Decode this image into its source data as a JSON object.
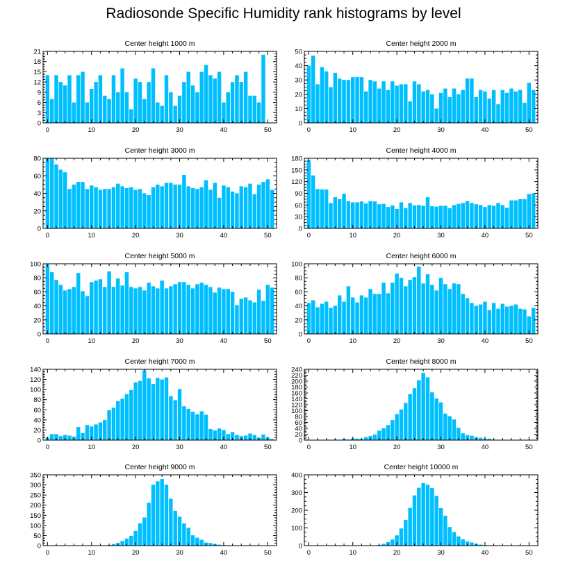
{
  "title": "Radiosonde Specific Humidity rank histograms by level",
  "colors": {
    "bar": "#00bfff",
    "bar_stroke": "#ffffff",
    "axis": "#000000",
    "background": "#ffffff"
  },
  "chart_data": [
    {
      "type": "bar",
      "title": "Center height 1000 m",
      "xlabel": "",
      "ylabel": "",
      "xlim": [
        -1,
        52
      ],
      "ylim": [
        0,
        21
      ],
      "xticks": [
        0,
        10,
        20,
        30,
        40,
        50
      ],
      "yticks": [
        0,
        3,
        6,
        9,
        12,
        15,
        18,
        21
      ],
      "x": [
        0,
        1,
        2,
        3,
        4,
        5,
        6,
        7,
        8,
        9,
        10,
        11,
        12,
        13,
        14,
        15,
        16,
        17,
        18,
        19,
        20,
        21,
        22,
        23,
        24,
        25,
        26,
        27,
        28,
        29,
        30,
        31,
        32,
        33,
        34,
        35,
        36,
        37,
        38,
        39,
        40,
        41,
        42,
        43,
        44,
        45,
        46,
        47,
        48,
        49,
        50,
        51
      ],
      "values": [
        14,
        7,
        14,
        12,
        11,
        14,
        6,
        14,
        15,
        6,
        10,
        12,
        14,
        8,
        7,
        14,
        9,
        16,
        9,
        4,
        13,
        12,
        7,
        12,
        16,
        6,
        5,
        14,
        9,
        5,
        8,
        12,
        15,
        11,
        9,
        15,
        17,
        14,
        13,
        15,
        6,
        9,
        12,
        14,
        12,
        15,
        8,
        8,
        6,
        20,
        0,
        0
      ]
    },
    {
      "type": "bar",
      "title": "Center height 2000 m",
      "xlabel": "",
      "ylabel": "",
      "xlim": [
        -1,
        52
      ],
      "ylim": [
        0,
        50
      ],
      "xticks": [
        0,
        10,
        20,
        30,
        40,
        50
      ],
      "yticks": [
        0,
        10,
        20,
        30,
        40,
        50
      ],
      "x": [
        0,
        1,
        2,
        3,
        4,
        5,
        6,
        7,
        8,
        9,
        10,
        11,
        12,
        13,
        14,
        15,
        16,
        17,
        18,
        19,
        20,
        21,
        22,
        23,
        24,
        25,
        26,
        27,
        28,
        29,
        30,
        31,
        32,
        33,
        34,
        35,
        36,
        37,
        38,
        39,
        40,
        41,
        42,
        43,
        44,
        45,
        46,
        47,
        48,
        49,
        50,
        51
      ],
      "values": [
        40,
        47,
        27,
        39,
        36,
        25,
        35,
        31,
        30,
        30,
        32,
        32,
        32,
        22,
        30,
        29,
        24,
        29,
        23,
        29,
        26,
        27,
        27,
        15,
        29,
        27,
        22,
        23,
        20,
        10,
        21,
        24,
        18,
        24,
        20,
        23,
        31,
        31,
        18,
        23,
        22,
        17,
        23,
        13,
        23,
        21,
        24,
        22,
        23,
        14,
        28,
        23
      ]
    },
    {
      "type": "bar",
      "title": "Center height 3000 m",
      "xlabel": "",
      "ylabel": "",
      "xlim": [
        -1,
        52
      ],
      "ylim": [
        0,
        80
      ],
      "xticks": [
        0,
        10,
        20,
        30,
        40,
        50
      ],
      "yticks": [
        0,
        20,
        40,
        60,
        80
      ],
      "x": [
        0,
        1,
        2,
        3,
        4,
        5,
        6,
        7,
        8,
        9,
        10,
        11,
        12,
        13,
        14,
        15,
        16,
        17,
        18,
        19,
        20,
        21,
        22,
        23,
        24,
        25,
        26,
        27,
        28,
        29,
        30,
        31,
        32,
        33,
        34,
        35,
        36,
        37,
        38,
        39,
        40,
        41,
        42,
        43,
        44,
        45,
        46,
        47,
        48,
        49,
        50,
        51
      ],
      "values": [
        80,
        80,
        73,
        67,
        64,
        45,
        50,
        53,
        53,
        45,
        49,
        47,
        44,
        45,
        45,
        47,
        51,
        48,
        46,
        47,
        44,
        45,
        40,
        38,
        47,
        50,
        48,
        52,
        52,
        50,
        50,
        61,
        48,
        46,
        45,
        47,
        55,
        44,
        52,
        35,
        49,
        47,
        42,
        40,
        48,
        47,
        51,
        39,
        50,
        53,
        56,
        44
      ]
    },
    {
      "type": "bar",
      "title": "Center height 4000 m",
      "xlabel": "",
      "ylabel": "",
      "xlim": [
        -1,
        52
      ],
      "ylim": [
        0,
        180
      ],
      "xticks": [
        0,
        10,
        20,
        30,
        40,
        50
      ],
      "yticks": [
        0,
        30,
        60,
        90,
        120,
        150,
        180
      ],
      "x": [
        0,
        1,
        2,
        3,
        4,
        5,
        6,
        7,
        8,
        9,
        10,
        11,
        12,
        13,
        14,
        15,
        16,
        17,
        18,
        19,
        20,
        21,
        22,
        23,
        24,
        25,
        26,
        27,
        28,
        29,
        30,
        31,
        32,
        33,
        34,
        35,
        36,
        37,
        38,
        39,
        40,
        41,
        42,
        43,
        44,
        45,
        46,
        47,
        48,
        49,
        50,
        51
      ],
      "values": [
        176,
        136,
        101,
        100,
        100,
        65,
        80,
        75,
        89,
        70,
        67,
        67,
        69,
        64,
        70,
        69,
        62,
        63,
        55,
        59,
        50,
        67,
        52,
        65,
        59,
        60,
        58,
        80,
        57,
        56,
        58,
        58,
        52,
        60,
        63,
        65,
        70,
        65,
        62,
        60,
        55,
        60,
        58,
        65,
        60,
        53,
        72,
        72,
        75,
        75,
        88,
        90
      ]
    },
    {
      "type": "bar",
      "title": "Center height 5000 m",
      "xlabel": "",
      "ylabel": "",
      "xlim": [
        -1,
        52
      ],
      "ylim": [
        0,
        100
      ],
      "xticks": [
        0,
        10,
        20,
        30,
        40,
        50
      ],
      "yticks": [
        0,
        20,
        40,
        60,
        80,
        100
      ],
      "x": [
        0,
        1,
        2,
        3,
        4,
        5,
        6,
        7,
        8,
        9,
        10,
        11,
        12,
        13,
        14,
        15,
        16,
        17,
        18,
        19,
        20,
        21,
        22,
        23,
        24,
        25,
        26,
        27,
        28,
        29,
        30,
        31,
        32,
        33,
        34,
        35,
        36,
        37,
        38,
        39,
        40,
        41,
        42,
        43,
        44,
        45,
        46,
        47,
        48,
        49,
        50,
        51
      ],
      "values": [
        99,
        88,
        77,
        70,
        62,
        64,
        67,
        87,
        61,
        54,
        74,
        76,
        78,
        67,
        89,
        67,
        79,
        69,
        88,
        67,
        65,
        67,
        62,
        73,
        68,
        65,
        76,
        65,
        68,
        71,
        74,
        74,
        70,
        65,
        71,
        73,
        70,
        67,
        59,
        66,
        64,
        64,
        60,
        41,
        50,
        52,
        48,
        45,
        63,
        47,
        70,
        66
      ]
    },
    {
      "type": "bar",
      "title": "Center height 6000 m",
      "xlabel": "",
      "ylabel": "",
      "xlim": [
        -1,
        52
      ],
      "ylim": [
        0,
        100
      ],
      "xticks": [
        0,
        10,
        20,
        30,
        40,
        50
      ],
      "yticks": [
        0,
        20,
        40,
        60,
        80,
        100
      ],
      "x": [
        0,
        1,
        2,
        3,
        4,
        5,
        6,
        7,
        8,
        9,
        10,
        11,
        12,
        13,
        14,
        15,
        16,
        17,
        18,
        19,
        20,
        21,
        22,
        23,
        24,
        25,
        26,
        27,
        28,
        29,
        30,
        31,
        32,
        33,
        34,
        35,
        36,
        37,
        38,
        39,
        40,
        41,
        42,
        43,
        44,
        45,
        46,
        47,
        48,
        49,
        50,
        51
      ],
      "values": [
        44,
        48,
        38,
        43,
        46,
        37,
        40,
        55,
        46,
        68,
        52,
        45,
        55,
        52,
        64,
        57,
        57,
        73,
        58,
        73,
        86,
        80,
        68,
        77,
        81,
        96,
        72,
        85,
        70,
        62,
        80,
        71,
        64,
        72,
        71,
        57,
        51,
        44,
        40,
        42,
        46,
        34,
        44,
        36,
        43,
        39,
        40,
        42,
        36,
        35,
        25,
        37
      ]
    },
    {
      "type": "bar",
      "title": "Center height 7000 m",
      "xlabel": "",
      "ylabel": "",
      "xlim": [
        -1,
        52
      ],
      "ylim": [
        0,
        140
      ],
      "xticks": [
        0,
        10,
        20,
        30,
        40,
        50
      ],
      "yticks": [
        0,
        20,
        40,
        60,
        80,
        100,
        120,
        140
      ],
      "x": [
        0,
        1,
        2,
        3,
        4,
        5,
        6,
        7,
        8,
        9,
        10,
        11,
        12,
        13,
        14,
        15,
        16,
        17,
        18,
        19,
        20,
        21,
        22,
        23,
        24,
        25,
        26,
        27,
        28,
        29,
        30,
        31,
        32,
        33,
        34,
        35,
        36,
        37,
        38,
        39,
        40,
        41,
        42,
        43,
        44,
        45,
        46,
        47,
        48,
        49,
        50,
        51
      ],
      "values": [
        5,
        12,
        12,
        8,
        10,
        9,
        7,
        26,
        14,
        30,
        27,
        31,
        35,
        40,
        59,
        64,
        77,
        82,
        91,
        99,
        114,
        117,
        138,
        122,
        111,
        123,
        120,
        124,
        87,
        79,
        101,
        67,
        62,
        56,
        51,
        57,
        50,
        22,
        19,
        23,
        20,
        12,
        16,
        10,
        8,
        9,
        13,
        10,
        5,
        11,
        5,
        2
      ]
    },
    {
      "type": "bar",
      "title": "Center height 8000 m",
      "xlabel": "",
      "ylabel": "",
      "xlim": [
        -1,
        52
      ],
      "ylim": [
        0,
        240
      ],
      "xticks": [
        0,
        10,
        20,
        30,
        40,
        50
      ],
      "yticks": [
        0,
        20,
        40,
        60,
        80,
        100,
        120,
        140,
        160,
        180,
        200,
        220,
        240
      ],
      "x": [
        0,
        1,
        2,
        3,
        4,
        5,
        6,
        7,
        8,
        9,
        10,
        11,
        12,
        13,
        14,
        15,
        16,
        17,
        18,
        19,
        20,
        21,
        22,
        23,
        24,
        25,
        26,
        27,
        28,
        29,
        30,
        31,
        32,
        33,
        34,
        35,
        36,
        37,
        38,
        39,
        40,
        41,
        42,
        43,
        44,
        45,
        46,
        47,
        48,
        49,
        50,
        51
      ],
      "values": [
        0,
        0,
        0,
        0,
        0,
        0,
        2,
        1,
        4,
        2,
        6,
        5,
        4,
        10,
        14,
        19,
        32,
        40,
        51,
        68,
        88,
        104,
        126,
        156,
        176,
        203,
        228,
        213,
        162,
        141,
        128,
        90,
        81,
        70,
        42,
        23,
        17,
        15,
        10,
        8,
        5,
        5,
        2,
        1,
        1,
        0,
        0,
        0,
        0,
        0,
        0,
        0
      ]
    },
    {
      "type": "bar",
      "title": "Center height 9000 m",
      "xlabel": "",
      "ylabel": "",
      "xlim": [
        -1,
        52
      ],
      "ylim": [
        0,
        350
      ],
      "xticks": [
        0,
        10,
        20,
        30,
        40,
        50
      ],
      "yticks": [
        0,
        50,
        100,
        150,
        200,
        250,
        300,
        350
      ],
      "x": [
        0,
        1,
        2,
        3,
        4,
        5,
        6,
        7,
        8,
        9,
        10,
        11,
        12,
        13,
        14,
        15,
        16,
        17,
        18,
        19,
        20,
        21,
        22,
        23,
        24,
        25,
        26,
        27,
        28,
        29,
        30,
        31,
        32,
        33,
        34,
        35,
        36,
        37,
        38,
        39,
        40,
        41,
        42,
        43,
        44,
        45,
        46,
        47,
        48,
        49,
        50,
        51
      ],
      "values": [
        0,
        0,
        0,
        0,
        0,
        0,
        0,
        0,
        0,
        0,
        0,
        0,
        0,
        1,
        3,
        8,
        13,
        23,
        35,
        48,
        73,
        110,
        139,
        212,
        301,
        318,
        329,
        301,
        232,
        172,
        143,
        110,
        88,
        51,
        39,
        29,
        15,
        13,
        7,
        5,
        3,
        2,
        1,
        1,
        1,
        0,
        0,
        0,
        0,
        0,
        0,
        0
      ]
    },
    {
      "type": "bar",
      "title": "Center height 10000 m",
      "xlabel": "",
      "ylabel": "",
      "xlim": [
        -1,
        52
      ],
      "ylim": [
        0,
        400
      ],
      "xticks": [
        0,
        10,
        20,
        30,
        40,
        50
      ],
      "yticks": [
        0,
        100,
        200,
        300,
        400
      ],
      "x": [
        0,
        1,
        2,
        3,
        4,
        5,
        6,
        7,
        8,
        9,
        10,
        11,
        12,
        13,
        14,
        15,
        16,
        17,
        18,
        19,
        20,
        21,
        22,
        23,
        24,
        25,
        26,
        27,
        28,
        29,
        30,
        31,
        32,
        33,
        34,
        35,
        36,
        37,
        38,
        39,
        40,
        41,
        42,
        43,
        44,
        45,
        46,
        47,
        48,
        49,
        50,
        51
      ],
      "values": [
        0,
        0,
        0,
        0,
        0,
        0,
        0,
        0,
        0,
        0,
        0,
        0,
        0,
        0,
        0,
        2,
        4,
        10,
        20,
        35,
        58,
        97,
        145,
        213,
        284,
        327,
        353,
        344,
        325,
        281,
        212,
        169,
        105,
        77,
        52,
        36,
        24,
        18,
        10,
        6,
        3,
        2,
        2,
        1,
        0,
        0,
        0,
        0,
        0,
        0,
        0,
        0
      ]
    }
  ]
}
